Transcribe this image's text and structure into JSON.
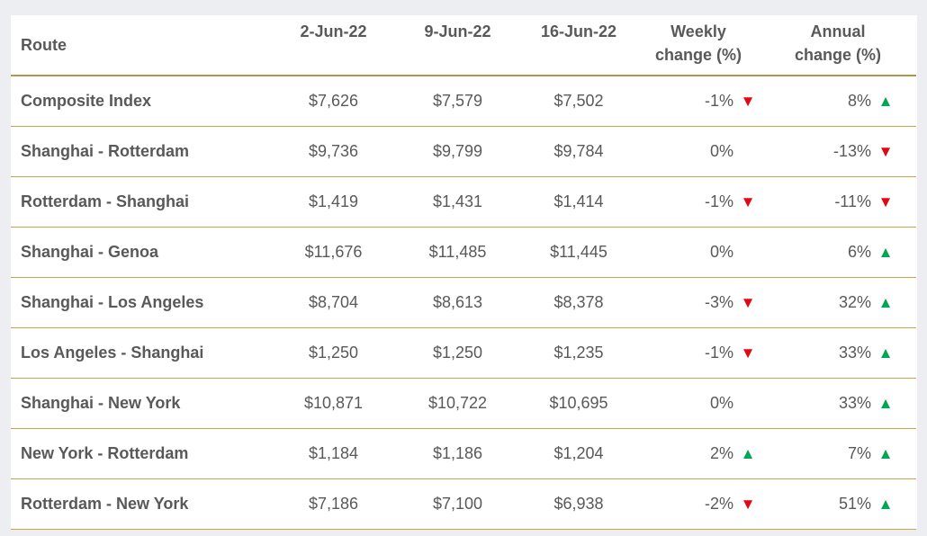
{
  "table": {
    "headers": {
      "route": "Route",
      "d1": "2-Jun-22",
      "d2": "9-Jun-22",
      "d3": "16-Jun-22",
      "weekly_line1": "Weekly",
      "weekly_line2": "change (%)",
      "annual_line1": "Annual",
      "annual_line2": "change (%)"
    },
    "rows": [
      {
        "route": "Composite Index",
        "d1": "$7,626",
        "d2": "$7,579",
        "d3": "$7,502",
        "weekly": "-1%",
        "weekly_dir": "down",
        "annual": "8%",
        "annual_dir": "up"
      },
      {
        "route": "Shanghai - Rotterdam",
        "d1": "$9,736",
        "d2": "$9,799",
        "d3": "$9,784",
        "weekly": "0%",
        "weekly_dir": "none",
        "annual": "-13%",
        "annual_dir": "down"
      },
      {
        "route": "Rotterdam - Shanghai",
        "d1": "$1,419",
        "d2": "$1,431",
        "d3": "$1,414",
        "weekly": "-1%",
        "weekly_dir": "down",
        "annual": "-11%",
        "annual_dir": "down"
      },
      {
        "route": "Shanghai - Genoa",
        "d1": "$11,676",
        "d2": "$11,485",
        "d3": "$11,445",
        "weekly": "0%",
        "weekly_dir": "none",
        "annual": "6%",
        "annual_dir": "up"
      },
      {
        "route": "Shanghai - Los Angeles",
        "d1": "$8,704",
        "d2": "$8,613",
        "d3": "$8,378",
        "weekly": "-3%",
        "weekly_dir": "down",
        "annual": "32%",
        "annual_dir": "up"
      },
      {
        "route": "Los Angeles - Shanghai",
        "d1": "$1,250",
        "d2": "$1,250",
        "d3": "$1,235",
        "weekly": "-1%",
        "weekly_dir": "down",
        "annual": "33%",
        "annual_dir": "up"
      },
      {
        "route": "Shanghai - New York",
        "d1": "$10,871",
        "d2": "$10,722",
        "d3": "$10,695",
        "weekly": "0%",
        "weekly_dir": "none",
        "annual": "33%",
        "annual_dir": "up"
      },
      {
        "route": "New York - Rotterdam",
        "d1": "$1,184",
        "d2": "$1,186",
        "d3": "$1,204",
        "weekly": "2%",
        "weekly_dir": "up",
        "annual": "7%",
        "annual_dir": "up"
      },
      {
        "route": "Rotterdam - New York",
        "d1": "$7,186",
        "d2": "$7,100",
        "d3": "$6,938",
        "weekly": "-2%",
        "weekly_dir": "down",
        "annual": "51%",
        "annual_dir": "up"
      }
    ]
  },
  "colors": {
    "rule": "#c9a24e",
    "down": "#e30613",
    "up": "#00a651",
    "text": "#595959"
  },
  "icons": {
    "down": "down-triangle-icon",
    "up": "up-triangle-icon"
  }
}
